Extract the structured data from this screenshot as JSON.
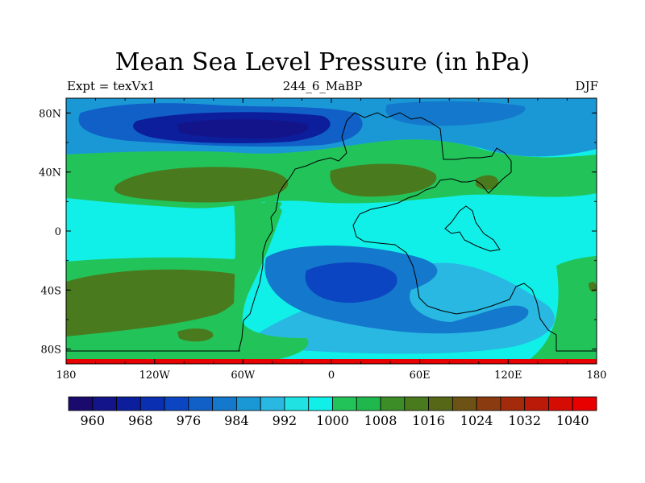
{
  "title": "Mean Sea Level Pressure (in hPa)",
  "subtitle_left": "Expt = texVx1",
  "subtitle_center": "244_6_MaBP",
  "subtitle_right": "DJF",
  "chart_data": {
    "type": "heatmap",
    "variable": "Mean Sea Level Pressure",
    "units": "hPa",
    "x_ticks": [
      "180",
      "120W",
      "60W",
      "0",
      "60E",
      "120E",
      "180"
    ],
    "y_ticks": [
      "80N",
      "40N",
      "0",
      "40S",
      "80S"
    ],
    "lon_range": [
      -180,
      180
    ],
    "lat_range": [
      -90,
      90
    ],
    "colorbar": {
      "levels": [
        960,
        964,
        968,
        972,
        976,
        980,
        984,
        988,
        992,
        996,
        1000,
        1004,
        1008,
        1012,
        1016,
        1020,
        1024,
        1028,
        1032,
        1036,
        1040
      ],
      "labels": [
        "960",
        "968",
        "976",
        "984",
        "992",
        "1000",
        "1008",
        "1016",
        "1024",
        "1032",
        "1040"
      ],
      "colors": [
        "#1a0a6e",
        "#14148a",
        "#0c1e9c",
        "#0a2fb0",
        "#0c45c2",
        "#1060c8",
        "#1478cc",
        "#1a98d6",
        "#28b8e2",
        "#20e2e2",
        "#10f0e8",
        "#22c45a",
        "#20b84c",
        "#3c8c28",
        "#4a7a1e",
        "#566818",
        "#6c5214",
        "#8a3c10",
        "#a42a0c",
        "#bc1a08",
        "#d40c04",
        "#e80000"
      ]
    },
    "regions_description_values_hPa": {
      "north_pacific_atlantic_low_center": 964,
      "southern_hemisphere_low_center": 972,
      "subtropical_high_belts": 1014
    }
  }
}
